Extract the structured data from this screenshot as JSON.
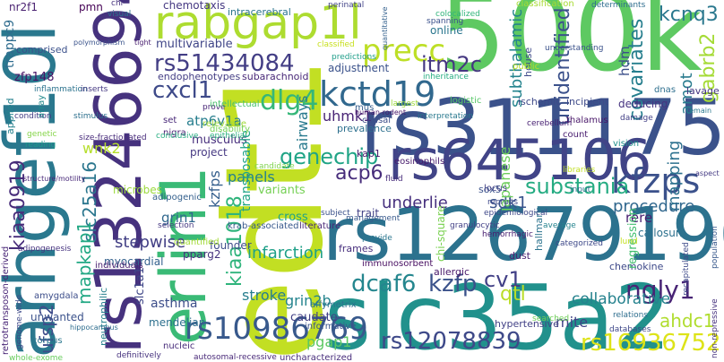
{
  "words": [
    {
      "text": "500k",
      "color": "#5ec962"
    },
    {
      "text": "edt1",
      "color": "#c2df23"
    },
    {
      "text": "rs3111754",
      "color": "#3b528b"
    },
    {
      "text": "rs12679196",
      "color": "#2c728e"
    },
    {
      "text": "slc35a2",
      "color": "#21918c"
    },
    {
      "text": "rs645106",
      "color": "#414487"
    },
    {
      "text": "rs13246694",
      "color": "#46327e"
    },
    {
      "text": "arhgef10l",
      "color": "#2a788e"
    },
    {
      "text": "erlin1",
      "color": "#3aba76"
    },
    {
      "text": "rabgap1l",
      "color": "#addc30"
    },
    {
      "text": "kctd19",
      "color": "#31688e"
    },
    {
      "text": "rs51434084",
      "color": "#433e85"
    },
    {
      "text": "rs10986769",
      "color": "#38598c"
    },
    {
      "text": "rs12078839",
      "color": "#3e4989"
    },
    {
      "text": "rs16936752",
      "color": "#dde318"
    },
    {
      "text": "kfzps",
      "color": "#3b518b"
    },
    {
      "text": "cxcl1",
      "color": "#3e4a89"
    },
    {
      "text": "dlg4",
      "color": "#35b779"
    },
    {
      "text": "genechip",
      "color": "#20a486"
    },
    {
      "text": "acp6",
      "color": "#472d7b"
    },
    {
      "text": "dcaf6",
      "color": "#24868e"
    },
    {
      "text": "kzfp",
      "color": "#3b528b"
    },
    {
      "text": "cv1",
      "color": "#424086"
    },
    {
      "text": "ngly1",
      "color": "#482475"
    },
    {
      "text": "precc",
      "color": "#bddf26"
    },
    {
      "text": "itm2c",
      "color": "#453781"
    },
    {
      "text": "kcnq3",
      "color": "#2a788e"
    },
    {
      "text": "unidentified",
      "color": "#3b518b"
    },
    {
      "text": "covariates",
      "color": "#277f8e"
    },
    {
      "text": "gabrb2",
      "color": "#a5db36"
    },
    {
      "text": "amot",
      "color": "#297b8e"
    },
    {
      "text": "mapping",
      "color": "#2c718e"
    },
    {
      "text": "hdm",
      "color": "#3c4f8a"
    },
    {
      "text": "subthalamic",
      "color": "#25848e"
    },
    {
      "text": "substania",
      "color": "#25ac82"
    },
    {
      "text": "procedure",
      "color": "#31688e"
    },
    {
      "text": "underlie",
      "color": "#46307e"
    },
    {
      "text": "sdk1",
      "color": "#3a548c"
    },
    {
      "text": "kiaa1018",
      "color": "#2fb47c"
    },
    {
      "text": "kiaa0919",
      "color": "#472c7a"
    },
    {
      "text": "slc25a16",
      "color": "#2a768e"
    },
    {
      "text": "mapkap1",
      "color": "#22a884"
    },
    {
      "text": "ufsp2",
      "color": "#3e4c8a"
    },
    {
      "text": "wnk2",
      "color": "#b5de2b"
    },
    {
      "text": "grin1",
      "color": "#31688e"
    },
    {
      "text": "stepwise",
      "color": "#423f85"
    },
    {
      "text": "infarction",
      "color": "#1fa088"
    },
    {
      "text": "stroke",
      "color": "#277e8e"
    },
    {
      "text": "asthma",
      "color": "#3d4e8a"
    },
    {
      "text": "grin2b",
      "color": "#25848e"
    },
    {
      "text": "caudate",
      "color": "#424186"
    },
    {
      "text": "pgap1",
      "color": "#5cc863"
    },
    {
      "text": "qtl",
      "color": "#bade28"
    },
    {
      "text": "collaborative",
      "color": "#26828e"
    },
    {
      "text": "ahdc1",
      "color": "#b0dd2f"
    },
    {
      "text": "mite",
      "color": "#414487"
    },
    {
      "text": "uhmk1",
      "color": "#482475"
    },
    {
      "text": "airways",
      "color": "#297a8e"
    },
    {
      "text": "panels",
      "color": "#26818e"
    },
    {
      "text": "kzfps",
      "color": "#355f8d"
    },
    {
      "text": "atp6v1a",
      "color": "#277e8e"
    },
    {
      "text": "multivariable",
      "color": "#404688"
    },
    {
      "text": "chemotaxis",
      "color": "#453882"
    },
    {
      "text": "intracerebral",
      "color": "#2b758e"
    },
    {
      "text": "endophenotypes",
      "color": "#433d84"
    },
    {
      "text": "subarachnoid",
      "color": "#482878"
    },
    {
      "text": "adjustment",
      "color": "#3b528b"
    },
    {
      "text": "online",
      "color": "#2a768e"
    },
    {
      "text": "prevalence",
      "color": "#2d708e"
    },
    {
      "text": "japanese",
      "color": "#6ccd5a"
    },
    {
      "text": "ischemic",
      "color": "#3e4989"
    },
    {
      "text": "incipient",
      "color": "#3e4a89"
    },
    {
      "text": "deducing",
      "color": "#463480"
    },
    {
      "text": "rere",
      "color": "#482071"
    },
    {
      "text": "callosum",
      "color": "#2d718e"
    },
    {
      "text": "nr2f1",
      "color": "#481f70"
    },
    {
      "text": "trappc9",
      "color": "#2f6c8e"
    },
    {
      "text": "zfp148",
      "color": "#471365"
    },
    {
      "text": "comprised",
      "color": "#3b518b"
    },
    {
      "text": "applied",
      "color": "#26828e"
    },
    {
      "text": "musculus",
      "color": "#472f7d"
    },
    {
      "text": "project",
      "color": "#453882"
    },
    {
      "text": "transposable",
      "color": "#20a386"
    },
    {
      "text": "variants",
      "color": "#75d054"
    },
    {
      "text": "kap1",
      "color": "#481a6c"
    },
    {
      "text": "microbes",
      "color": "#9bd93c"
    },
    {
      "text": "slc1a1",
      "color": "#3f4788"
    },
    {
      "text": "myocardial",
      "color": "#34618d"
    },
    {
      "text": "founder",
      "color": "#3e4c8a"
    },
    {
      "text": "mendelian",
      "color": "#2d708e"
    },
    {
      "text": "unwanted",
      "color": "#3b528b"
    },
    {
      "text": "neutrophilic",
      "color": "#27808e"
    },
    {
      "text": "pparg2",
      "color": "#46327e"
    },
    {
      "text": "krab-associated",
      "color": "#38588c"
    },
    {
      "text": "cross",
      "color": "#20a386"
    },
    {
      "text": "frames",
      "color": "#472f7d"
    },
    {
      "text": "trait",
      "color": "#424186"
    },
    {
      "text": "sox5",
      "color": "#3b528b"
    },
    {
      "text": "dust",
      "color": "#481f70"
    },
    {
      "text": "chemokine",
      "color": "#3e4989"
    },
    {
      "text": "hallmark",
      "color": "#2c738e"
    },
    {
      "text": "eosinophils",
      "color": "#481b6d"
    },
    {
      "text": "chi-square",
      "color": "#7ad151"
    },
    {
      "text": "regression",
      "color": "#44bf70"
    },
    {
      "text": "immunosorbent",
      "color": "#470e61"
    },
    {
      "text": "hypertensive",
      "color": "#424186"
    },
    {
      "text": "allergic",
      "color": "#481769"
    },
    {
      "text": "retrotransposon-derived",
      "color": "#482576"
    },
    {
      "text": "genome-wide",
      "color": "#3e4989"
    },
    {
      "text": "whole-exome",
      "color": "#67cc5c"
    },
    {
      "text": "amygdala",
      "color": "#3d4e8a"
    },
    {
      "text": "corpus",
      "color": "#2a778e"
    },
    {
      "text": "individuals",
      "color": "#481f70"
    },
    {
      "text": "adipogenesis",
      "color": "#46337f"
    },
    {
      "text": "nucleic",
      "color": "#472c7a"
    },
    {
      "text": "informative",
      "color": "#3a548c"
    },
    {
      "text": "uncharacterized",
      "color": "#472d7b"
    },
    {
      "text": "autosomal-recessive",
      "color": "#482878"
    },
    {
      "text": "definitively",
      "color": "#46327e"
    },
    {
      "text": "affymetrix",
      "color": "#2c718e"
    },
    {
      "text": "quantified",
      "color": "#a2da37"
    },
    {
      "text": "adipogenic",
      "color": "#34608d"
    },
    {
      "text": "selection",
      "color": "#453882"
    },
    {
      "text": "literature",
      "color": "#482677"
    },
    {
      "text": "subject",
      "color": "#3b528b"
    },
    {
      "text": "management",
      "color": "#38598c"
    },
    {
      "text": "fluid",
      "color": "#472c7a"
    },
    {
      "text": "locus",
      "color": "#424186"
    },
    {
      "text": "recruits",
      "color": "#3e4989"
    },
    {
      "text": "cerebellum",
      "color": "#482173"
    },
    {
      "text": "count",
      "color": "#481c6e"
    },
    {
      "text": "vision",
      "color": "#21918c"
    },
    {
      "text": "thalamus",
      "color": "#481668"
    },
    {
      "text": "damage",
      "color": "#424086"
    },
    {
      "text": "set",
      "color": "#482878"
    },
    {
      "text": "nigra",
      "color": "#482475"
    },
    {
      "text": "relevance",
      "color": "#a0da39"
    },
    {
      "text": "disability",
      "color": "#73d056"
    },
    {
      "text": "prove",
      "color": "#482677"
    },
    {
      "text": "pmn",
      "color": "#440154"
    },
    {
      "text": "chr",
      "color": "#46327e"
    },
    {
      "text": "visual",
      "color": "#2c728e"
    },
    {
      "text": "perinatal",
      "color": "#414287"
    },
    {
      "text": "colocalized",
      "color": "#31b57b"
    },
    {
      "text": "spanning",
      "color": "#3b518b"
    },
    {
      "text": "classification",
      "color": "#a8db34"
    },
    {
      "text": "determinants",
      "color": "#2e6d8e"
    },
    {
      "text": "lavage",
      "color": "#453581"
    },
    {
      "text": "dnas",
      "color": "#2e6f8e"
    },
    {
      "text": "house",
      "color": "#3e4989"
    },
    {
      "text": "public",
      "color": "#b8de29"
    },
    {
      "text": "inheritance",
      "color": "#26ad81"
    },
    {
      "text": "logistic",
      "color": "#56c667"
    },
    {
      "text": "largest",
      "color": "#9dd93b"
    },
    {
      "text": "mus",
      "color": "#355e8d"
    },
    {
      "text": "causal",
      "color": "#3d4e8a"
    },
    {
      "text": "human-rodent",
      "color": "#48186a"
    },
    {
      "text": "interpretation",
      "color": "#29798e"
    },
    {
      "text": "intellectual",
      "color": "#4ac16d"
    },
    {
      "text": "inflammation",
      "color": "#2c738e"
    },
    {
      "text": "condition",
      "color": "#433e85"
    },
    {
      "text": "array",
      "color": "#238a8d"
    },
    {
      "text": "stimulus",
      "color": "#2d708e"
    },
    {
      "text": "inserts",
      "color": "#453882"
    },
    {
      "text": "size-fractionated",
      "color": "#472a7a"
    },
    {
      "text": "conclusive",
      "color": "#27ad81"
    },
    {
      "text": "genetic",
      "color": "#86d549"
    },
    {
      "text": "reading",
      "color": "#1e9b8a"
    },
    {
      "text": "epithelia",
      "color": "#2ab07f"
    },
    {
      "text": "candidate",
      "color": "#7fd34e"
    },
    {
      "text": "structure/motility",
      "color": "#482979"
    },
    {
      "text": "polymorphism",
      "color": "#3a538b"
    },
    {
      "text": "tight",
      "color": "#481e6f"
    },
    {
      "text": "quantitative",
      "color": "#34618d"
    },
    {
      "text": "classified",
      "color": "#c8e020"
    },
    {
      "text": "predictions",
      "color": "#1f9e89"
    },
    {
      "text": "understanding",
      "color": "#3b528b"
    },
    {
      "text": "remain",
      "color": "#2a788e"
    },
    {
      "text": "aspect",
      "color": "#443a83"
    },
    {
      "text": "input",
      "color": "#2e6e8e"
    },
    {
      "text": "libraries",
      "color": "#c0df25"
    },
    {
      "text": "epidemiological",
      "color": "#3f4889"
    },
    {
      "text": "granulocytic",
      "color": "#424086"
    },
    {
      "text": "hemorrhagic",
      "color": "#482071"
    },
    {
      "text": "provide",
      "color": "#2a768e"
    },
    {
      "text": "categorized",
      "color": "#3e4989"
    },
    {
      "text": "relations",
      "color": "#2e6e8e"
    },
    {
      "text": "databases",
      "color": "#3f4889"
    },
    {
      "text": "searched",
      "color": "#6ece58"
    },
    {
      "text": "average",
      "color": "#25838e"
    },
    {
      "text": "recapitulated",
      "color": "#3e4a89"
    },
    {
      "text": "non-repressive",
      "color": "#46337f"
    },
    {
      "text": "population",
      "color": "#38598c"
    },
    {
      "text": "hippocampus",
      "color": "#2e6d8e"
    },
    {
      "text": "lund",
      "color": "#c5e021"
    }
  ]
}
